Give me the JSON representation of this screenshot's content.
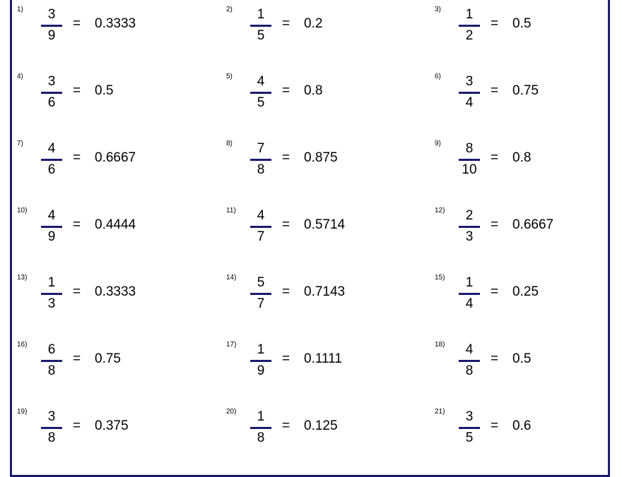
{
  "colors": {
    "border": "#1c1c6e",
    "fraction_bar": "#1c1c6e",
    "text": "#000000"
  },
  "problems": [
    {
      "label": "1)",
      "numerator": "3",
      "denominator": "9",
      "equals": "=",
      "answer": "0.3333"
    },
    {
      "label": "2)",
      "numerator": "1",
      "denominator": "5",
      "equals": "=",
      "answer": "0.2"
    },
    {
      "label": "3)",
      "numerator": "1",
      "denominator": "2",
      "equals": "=",
      "answer": "0.5"
    },
    {
      "label": "4)",
      "numerator": "3",
      "denominator": "6",
      "equals": "=",
      "answer": "0.5"
    },
    {
      "label": "5)",
      "numerator": "4",
      "denominator": "5",
      "equals": "=",
      "answer": "0.8"
    },
    {
      "label": "6)",
      "numerator": "3",
      "denominator": "4",
      "equals": "=",
      "answer": "0.75"
    },
    {
      "label": "7)",
      "numerator": "4",
      "denominator": "6",
      "equals": "=",
      "answer": "0.6667"
    },
    {
      "label": "8)",
      "numerator": "7",
      "denominator": "8",
      "equals": "=",
      "answer": "0.875"
    },
    {
      "label": "9)",
      "numerator": "8",
      "denominator": "10",
      "equals": "=",
      "answer": "0.8"
    },
    {
      "label": "10)",
      "numerator": "4",
      "denominator": "9",
      "equals": "=",
      "answer": "0.4444"
    },
    {
      "label": "11)",
      "numerator": "4",
      "denominator": "7",
      "equals": "=",
      "answer": "0.5714"
    },
    {
      "label": "12)",
      "numerator": "2",
      "denominator": "3",
      "equals": "=",
      "answer": "0.6667"
    },
    {
      "label": "13)",
      "numerator": "1",
      "denominator": "3",
      "equals": "=",
      "answer": "0.3333"
    },
    {
      "label": "14)",
      "numerator": "5",
      "denominator": "7",
      "equals": "=",
      "answer": "0.7143"
    },
    {
      "label": "15)",
      "numerator": "1",
      "denominator": "4",
      "equals": "=",
      "answer": "0.25"
    },
    {
      "label": "16)",
      "numerator": "6",
      "denominator": "8",
      "equals": "=",
      "answer": "0.75"
    },
    {
      "label": "17)",
      "numerator": "1",
      "denominator": "9",
      "equals": "=",
      "answer": "0.1111"
    },
    {
      "label": "18)",
      "numerator": "4",
      "denominator": "8",
      "equals": "=",
      "answer": "0.5"
    },
    {
      "label": "19)",
      "numerator": "3",
      "denominator": "8",
      "equals": "=",
      "answer": "0.375"
    },
    {
      "label": "20)",
      "numerator": "1",
      "denominator": "8",
      "equals": "=",
      "answer": "0.125"
    },
    {
      "label": "21)",
      "numerator": "3",
      "denominator": "5",
      "equals": "=",
      "answer": "0.6"
    }
  ]
}
